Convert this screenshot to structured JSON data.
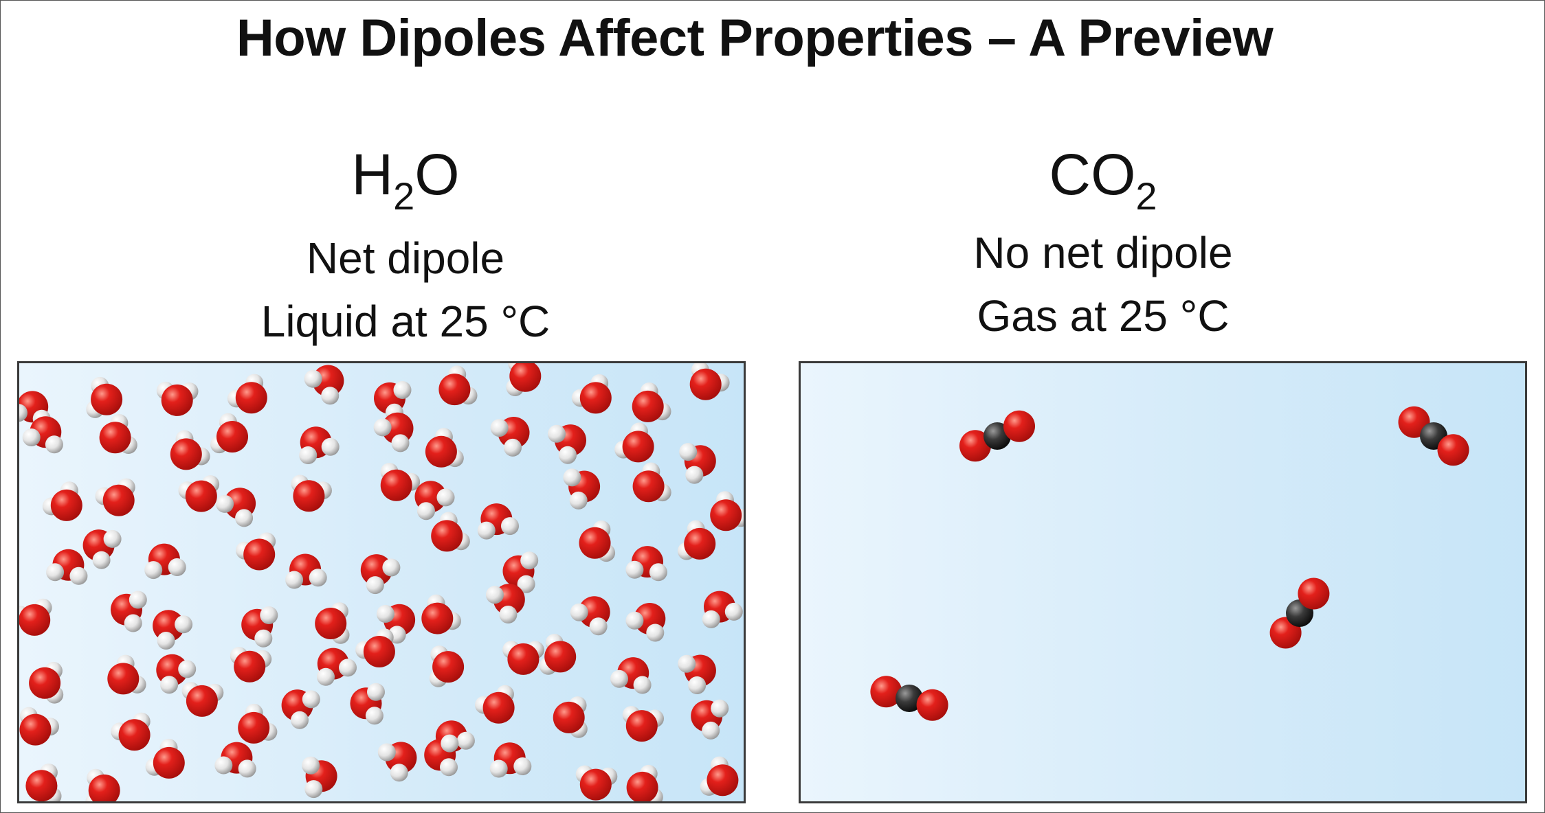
{
  "title": "How Dipoles Affect Properties – A Preview",
  "left": {
    "formula": {
      "main": "H",
      "sub": "2",
      "tail": "O"
    },
    "dipole": "Net dipole",
    "state": "Liquid at 25 °C"
  },
  "right": {
    "formula": {
      "main": "CO",
      "sub": "2",
      "tail": ""
    },
    "dipole": "No net dipole",
    "state": "Gas at 25 °C"
  },
  "colors": {
    "oxygen": "#e3201b",
    "hydrogen": "#e4e4e4",
    "carbon": "#3a3a3a",
    "panel_border": "#3a3a3a"
  },
  "molecule_counts": {
    "water": 88,
    "carbon_dioxide": 4
  }
}
